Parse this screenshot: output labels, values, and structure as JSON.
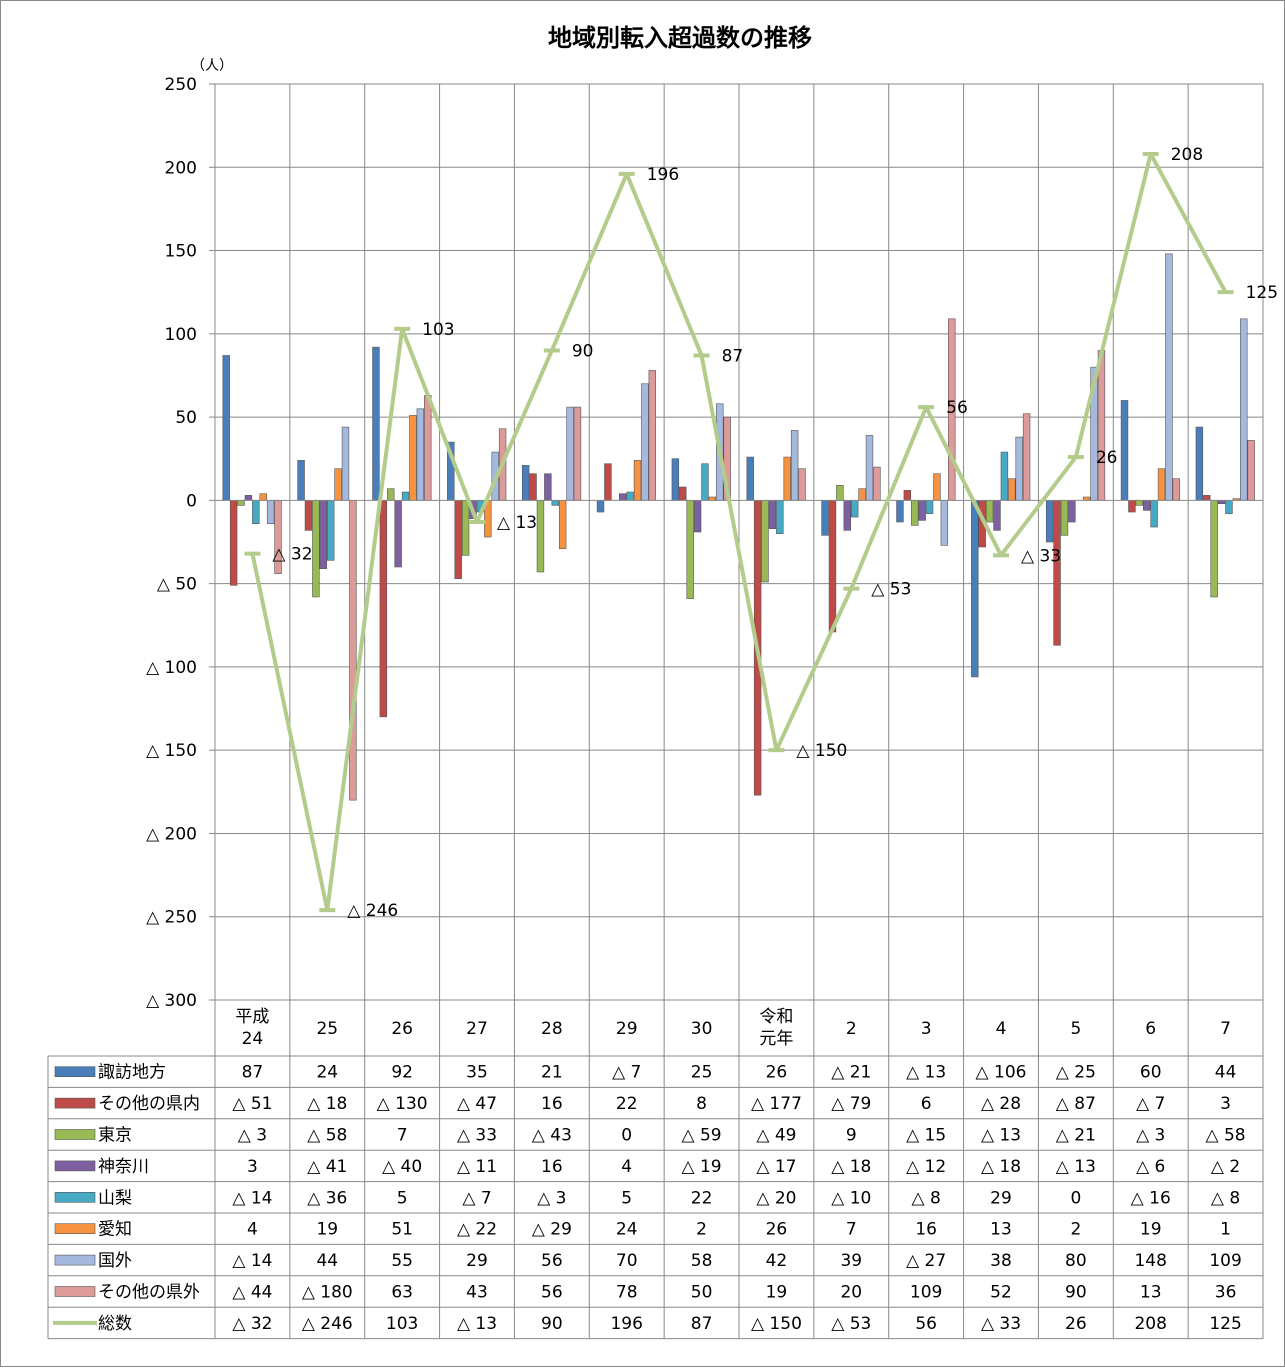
{
  "chart_data": {
    "type": "bar",
    "title": "地域別転入超過数の推移",
    "ylabel": "（人）",
    "ylim": [
      -300,
      250
    ],
    "yticks": [
      250,
      200,
      150,
      100,
      50,
      0,
      -50,
      -100,
      -150,
      -200,
      -250,
      -300
    ],
    "ytick_labels": [
      "250",
      "200",
      "150",
      "100",
      "50",
      "0",
      "△ 50",
      "△ 100",
      "△ 150",
      "△ 200",
      "△ 250",
      "△ 300"
    ],
    "grid": true,
    "legend": "data-table",
    "categories": [
      "平成24",
      "25",
      "26",
      "27",
      "28",
      "29",
      "30",
      "令和元年",
      "2",
      "3",
      "4",
      "5",
      "6",
      "7"
    ],
    "series": [
      {
        "name": "諏訪地方",
        "kind": "bar",
        "color": "#4a7ebb",
        "values": [
          87,
          24,
          92,
          35,
          21,
          -7,
          25,
          26,
          -21,
          -13,
          -106,
          -25,
          60,
          44
        ],
        "labels": [
          "87",
          "24",
          "92",
          "35",
          "21",
          "△ 7",
          "25",
          "26",
          "△ 21",
          "△ 13",
          "△ 106",
          "△ 25",
          "60",
          "44"
        ]
      },
      {
        "name": "その他の県内",
        "kind": "bar",
        "color": "#be4b48",
        "values": [
          -51,
          -18,
          -130,
          -47,
          16,
          22,
          8,
          -177,
          -79,
          6,
          -28,
          -87,
          -7,
          3
        ],
        "labels": [
          "△ 51",
          "△ 18",
          "△ 130",
          "△ 47",
          "16",
          "22",
          "8",
          "△ 177",
          "△ 79",
          "6",
          "△ 28",
          "△ 87",
          "△ 7",
          "3"
        ]
      },
      {
        "name": "東京",
        "kind": "bar",
        "color": "#98b954",
        "values": [
          -3,
          -58,
          7,
          -33,
          -43,
          0,
          -59,
          -49,
          9,
          -15,
          -13,
          -21,
          -3,
          -58
        ],
        "labels": [
          "△ 3",
          "△ 58",
          "7",
          "△ 33",
          "△ 43",
          "0",
          "△ 59",
          "△ 49",
          "9",
          "△ 15",
          "△ 13",
          "△ 21",
          "△ 3",
          "△ 58"
        ]
      },
      {
        "name": "神奈川",
        "kind": "bar",
        "color": "#7d60a0",
        "values": [
          3,
          -41,
          -40,
          -11,
          16,
          4,
          -19,
          -17,
          -18,
          -12,
          -18,
          -13,
          -6,
          -2
        ],
        "labels": [
          "3",
          "△ 41",
          "△ 40",
          "△ 11",
          "16",
          "4",
          "△ 19",
          "△ 17",
          "△ 18",
          "△ 12",
          "△ 18",
          "△ 13",
          "△ 6",
          "△ 2"
        ]
      },
      {
        "name": "山梨",
        "kind": "bar",
        "color": "#46aac5",
        "values": [
          -14,
          -36,
          5,
          -7,
          -3,
          5,
          22,
          -20,
          -10,
          -8,
          29,
          0,
          -16,
          -8
        ],
        "labels": [
          "△ 14",
          "△ 36",
          "5",
          "△ 7",
          "△ 3",
          "5",
          "22",
          "△ 20",
          "△ 10",
          "△ 8",
          "29",
          "0",
          "△ 16",
          "△ 8"
        ]
      },
      {
        "name": "愛知",
        "kind": "bar",
        "color": "#f69240",
        "values": [
          4,
          19,
          51,
          -22,
          -29,
          24,
          2,
          26,
          7,
          16,
          13,
          2,
          19,
          1
        ],
        "labels": [
          "4",
          "19",
          "51",
          "△ 22",
          "△ 29",
          "24",
          "2",
          "26",
          "7",
          "16",
          "13",
          "2",
          "19",
          "1"
        ]
      },
      {
        "name": "国外",
        "kind": "bar",
        "color": "#a5b8de",
        "values": [
          -14,
          44,
          55,
          29,
          56,
          70,
          58,
          42,
          39,
          -27,
          38,
          80,
          148,
          109
        ],
        "labels": [
          "△ 14",
          "44",
          "55",
          "29",
          "56",
          "70",
          "58",
          "42",
          "39",
          "△ 27",
          "38",
          "80",
          "148",
          "109"
        ]
      },
      {
        "name": "その他の県外",
        "kind": "bar",
        "color": "#dc9a98",
        "values": [
          -44,
          -180,
          63,
          43,
          56,
          78,
          50,
          19,
          20,
          109,
          52,
          90,
          13,
          36
        ],
        "labels": [
          "△ 44",
          "△ 180",
          "63",
          "43",
          "56",
          "78",
          "50",
          "19",
          "20",
          "109",
          "52",
          "90",
          "13",
          "36"
        ]
      },
      {
        "name": "総数",
        "kind": "line",
        "color": "#b3cc8c",
        "values": [
          -32,
          -246,
          103,
          -13,
          90,
          196,
          87,
          -150,
          -53,
          56,
          -33,
          26,
          208,
          125
        ],
        "labels": [
          "△ 32",
          "△ 246",
          "103",
          "△ 13",
          "90",
          "196",
          "87",
          "△ 150",
          "△ 53",
          "56",
          "△ 33",
          "26",
          "208",
          "125"
        ]
      }
    ]
  }
}
